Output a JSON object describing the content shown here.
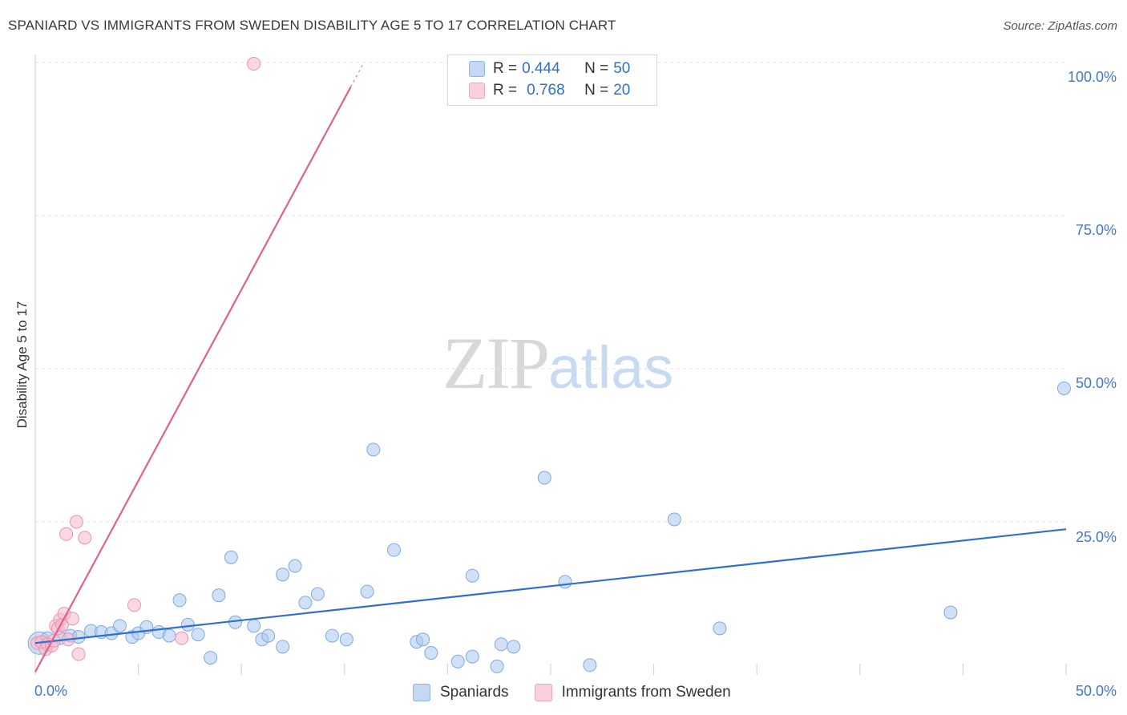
{
  "title": "SPANIARD VS IMMIGRANTS FROM SWEDEN DISABILITY AGE 5 TO 17 CORRELATION CHART",
  "source": "Source: ZipAtlas.com",
  "watermark": {
    "zip": "ZIP",
    "atlas": "atlas"
  },
  "legend_top": {
    "rows": [
      {
        "r_label": "R = ",
        "r_value": "0.444",
        "n_label": "N = ",
        "n_value": "50"
      },
      {
        "r_label": "R = ",
        "r_value": "0.768",
        "n_label": "N = ",
        "n_value": "20"
      }
    ]
  },
  "legend_bottom": [
    "Spaniards",
    "Immigrants from Sweden"
  ],
  "colors": {
    "spaniards_fill": "#a9c8f0",
    "spaniards_stroke": "#7fa8e0",
    "spaniards_line": "#2f6fd0",
    "sweden_fill": "#f7b9cb",
    "sweden_stroke": "#ec93ad",
    "sweden_line": "#e06090",
    "tick_text": "#4477cc",
    "grid": "#e3e3e3"
  },
  "chart_data": {
    "type": "scatter",
    "title": "SPANIARD VS IMMIGRANTS FROM SWEDEN DISABILITY AGE 5 TO 17 CORRELATION CHART",
    "xlabel": "",
    "ylabel": "Disability Age 5 to 17",
    "xlim": [
      0,
      50
    ],
    "ylim": [
      0,
      100
    ],
    "x_tick_labels": [
      "0.0%",
      "50.0%"
    ],
    "y_tick_labels": [
      "25.0%",
      "50.0%",
      "75.0%",
      "100.0%"
    ],
    "y_ticks": [
      25,
      50,
      75,
      100
    ],
    "grid": true,
    "legend_position": "top-center",
    "series": [
      {
        "name": "Spaniards",
        "R": 0.444,
        "N": 50,
        "trend": {
          "x0": 0,
          "y0": 5.2,
          "x1": 50,
          "y1": 23.8
        },
        "points": [
          [
            0.2,
            5.2
          ],
          [
            0.6,
            6.0
          ],
          [
            1.2,
            6.0
          ],
          [
            1.7,
            6.4
          ],
          [
            2.1,
            6.2
          ],
          [
            2.7,
            7.2
          ],
          [
            3.2,
            7.0
          ],
          [
            3.7,
            6.8
          ],
          [
            4.1,
            8.0
          ],
          [
            4.7,
            6.2
          ],
          [
            5.0,
            6.8
          ],
          [
            5.4,
            7.8
          ],
          [
            6.0,
            7.0
          ],
          [
            6.5,
            6.4
          ],
          [
            7.0,
            12.2
          ],
          [
            7.4,
            8.2
          ],
          [
            7.9,
            6.6
          ],
          [
            8.5,
            2.8
          ],
          [
            8.9,
            13.0
          ],
          [
            9.5,
            19.2
          ],
          [
            9.7,
            8.6
          ],
          [
            10.6,
            8.0
          ],
          [
            11.0,
            5.8
          ],
          [
            11.3,
            6.4
          ],
          [
            12.0,
            4.6
          ],
          [
            12.0,
            16.4
          ],
          [
            12.6,
            17.8
          ],
          [
            13.1,
            11.8
          ],
          [
            13.7,
            13.2
          ],
          [
            14.4,
            6.4
          ],
          [
            15.1,
            5.8
          ],
          [
            16.1,
            13.6
          ],
          [
            16.4,
            36.8
          ],
          [
            17.4,
            20.4
          ],
          [
            18.5,
            5.4
          ],
          [
            18.8,
            5.8
          ],
          [
            19.2,
            3.6
          ],
          [
            20.5,
            2.2
          ],
          [
            21.2,
            16.2
          ],
          [
            21.2,
            3.0
          ],
          [
            22.4,
            1.4
          ],
          [
            22.6,
            5.0
          ],
          [
            23.2,
            4.6
          ],
          [
            24.7,
            32.2
          ],
          [
            25.7,
            15.2
          ],
          [
            26.9,
            1.6
          ],
          [
            31.0,
            25.4
          ],
          [
            33.2,
            7.6
          ],
          [
            44.4,
            10.2
          ],
          [
            49.9,
            46.8
          ]
        ]
      },
      {
        "name": "Immigrants from Sweden",
        "R": 0.768,
        "N": 20,
        "trend": {
          "x0": 0,
          "y0": 0.5,
          "x1": 15.3,
          "y1": 96.0
        },
        "points": [
          [
            0.1,
            5.2
          ],
          [
            0.3,
            5.4
          ],
          [
            0.5,
            4.2
          ],
          [
            0.6,
            5.0
          ],
          [
            0.8,
            4.8
          ],
          [
            0.9,
            5.6
          ],
          [
            1.0,
            8.0
          ],
          [
            1.1,
            7.6
          ],
          [
            1.2,
            9.0
          ],
          [
            1.3,
            8.2
          ],
          [
            1.4,
            10.0
          ],
          [
            1.5,
            23.0
          ],
          [
            1.6,
            5.8
          ],
          [
            1.8,
            9.2
          ],
          [
            2.0,
            25.0
          ],
          [
            2.1,
            3.4
          ],
          [
            2.4,
            22.4
          ],
          [
            4.8,
            11.4
          ],
          [
            7.1,
            6.0
          ],
          [
            10.6,
            99.8
          ]
        ]
      }
    ]
  }
}
